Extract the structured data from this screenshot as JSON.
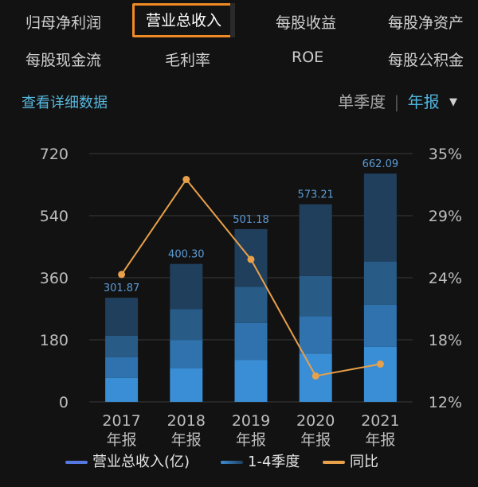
{
  "tabs": [
    {
      "label": "归母净利润"
    },
    {
      "label": "营业总收入"
    },
    {
      "label": "每股收益"
    },
    {
      "label": "每股净资产"
    },
    {
      "label": "每股现金流"
    },
    {
      "label": "毛利率"
    },
    {
      "label": "ROE"
    },
    {
      "label": "每股公积金"
    }
  ],
  "active_tab": "营业总收入",
  "detail_link": "查看详细数据",
  "period_toggle": {
    "quarter": "单季度",
    "year": "年报",
    "caret": "▼"
  },
  "legend": [
    {
      "label": "营业总收入(亿)",
      "color": "#5577e0"
    },
    {
      "label": "1-4季度",
      "color": "#2e6ea8"
    },
    {
      "label": "同比",
      "color": "#e8a04a"
    }
  ],
  "chart_data": {
    "type": "bar",
    "categories": [
      "2017\n年报",
      "2018\n年报",
      "2019\n年报",
      "2020\n年报",
      "2021\n年报"
    ],
    "series": [
      {
        "name": "1-4季度",
        "stack": [
          [
            70,
            60,
            62,
            110
          ],
          [
            97,
            82,
            90,
            131
          ],
          [
            122,
            107,
            105,
            167
          ],
          [
            140,
            108,
            117,
            208
          ],
          [
            160,
            122,
            125,
            255
          ]
        ]
      },
      {
        "name": "营业总收入(亿)",
        "values": [
          301.87,
          400.3,
          501.18,
          573.21,
          662.09
        ]
      },
      {
        "name": "同比",
        "values": [
          23.8,
          32.6,
          25.2,
          14.4,
          15.5
        ],
        "axis": "right"
      }
    ],
    "value_labels": [
      "301.87",
      "400.30",
      "501.18",
      "573.21",
      "662.09"
    ],
    "y_left": {
      "ticks": [
        "720",
        "540",
        "360",
        "180",
        "0"
      ],
      "range": [
        0,
        720
      ]
    },
    "y_right": {
      "ticks": [
        "35%",
        "29%",
        "24%",
        "18%",
        "12%"
      ],
      "range": [
        12,
        35
      ]
    },
    "x_labels": [
      {
        "year": "2017",
        "kind": "年报"
      },
      {
        "year": "2018",
        "kind": "年报"
      },
      {
        "year": "2019",
        "kind": "年报"
      },
      {
        "year": "2020",
        "kind": "年报"
      },
      {
        "year": "2021",
        "kind": "年报"
      }
    ],
    "colors": {
      "bar_segments": [
        "#3a8ed6",
        "#2f72ad",
        "#285b86",
        "#203f5c"
      ],
      "line": "#e8a04a",
      "value_label": "#5a9bd6",
      "grid": "#3a3a3a",
      "axis_text": "#bdbdbd"
    },
    "grid": true
  }
}
